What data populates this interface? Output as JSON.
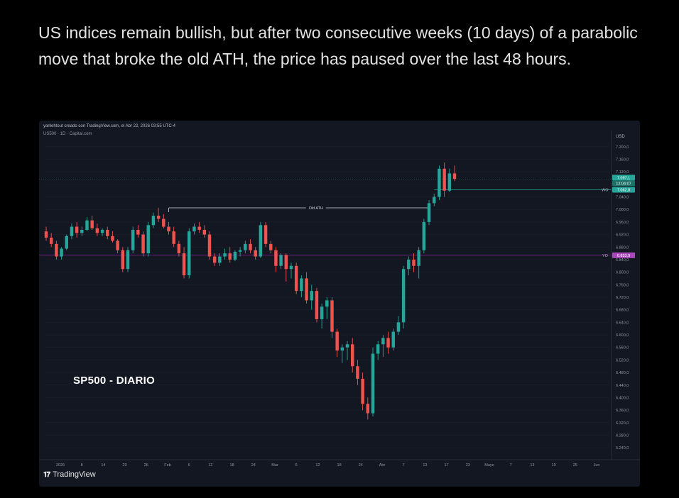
{
  "post": {
    "text": "US indices remain bullish, but after two consecutive weeks (10 days) of a parabolic move that broke the old ATH, the price has paused over the last 48 hours."
  },
  "chart": {
    "credit": "yanlehtout creado con TradingView.com, el Abr 22, 2026 03:55 UTC-4",
    "symbol": "US500 · 1D · Capital.com",
    "currency": "USD",
    "caption": "SP500 - DIARIO",
    "brand": "TradingView",
    "brand_icon": "tradingview-logo-icon",
    "colors": {
      "up": "#26a69a",
      "down": "#ef5350",
      "background": "#131722",
      "ath_line": "#d1d4dc",
      "yo_line": "#9c27b0",
      "wo_line": "#26a69a"
    }
  },
  "chart_data": {
    "type": "candlestick",
    "title": "SP500 - DIARIO",
    "ylim": [
      6220,
      7220
    ],
    "y_ticks": [
      "7.200,0",
      "7.160,0",
      "7.120,0",
      "7.080,0",
      "7.040,0",
      "7.000,0",
      "6.960,0",
      "6.920,0",
      "6.880,0",
      "6.840,0",
      "6.800,0",
      "6.760,0",
      "6.720,0",
      "6.680,0",
      "6.640,0",
      "6.600,0",
      "6.560,0",
      "6.520,0",
      "6.480,0",
      "6.440,0",
      "6.400,0",
      "6.360,0",
      "6.320,0",
      "6.280,0",
      "6.240,0"
    ],
    "x_ticks": [
      "2026",
      "8",
      "14",
      "20",
      "26",
      "Feb",
      "6",
      "12",
      "18",
      "24",
      "Mar",
      "6",
      "12",
      "18",
      "24",
      "Abr",
      "7",
      "13",
      "17",
      "23",
      "Mayo",
      "7",
      "13",
      "19",
      "25",
      "Jun"
    ],
    "price_labels": {
      "last": "7.097,1",
      "countdown": "12:04:07",
      "wo": "7.062,8",
      "yo": "6.853,9",
      "wo_tag": "WO",
      "yo_tag": "YO"
    },
    "levels": {
      "ath_label": "Old ATH",
      "ath": 7005,
      "wo": 7062.8,
      "yo": 6853.9
    },
    "candles": [
      [
        6930,
        6945,
        6900,
        6910
      ],
      [
        6910,
        6925,
        6880,
        6890
      ],
      [
        6890,
        6900,
        6840,
        6850
      ],
      [
        6850,
        6880,
        6840,
        6875
      ],
      [
        6875,
        6920,
        6870,
        6915
      ],
      [
        6915,
        6955,
        6905,
        6945
      ],
      [
        6945,
        6960,
        6910,
        6925
      ],
      [
        6925,
        6945,
        6915,
        6935
      ],
      [
        6935,
        6975,
        6930,
        6965
      ],
      [
        6965,
        6980,
        6935,
        6940
      ],
      [
        6940,
        6955,
        6915,
        6925
      ],
      [
        6925,
        6940,
        6915,
        6935
      ],
      [
        6935,
        6945,
        6905,
        6915
      ],
      [
        6915,
        6930,
        6895,
        6900
      ],
      [
        6900,
        6905,
        6860,
        6870
      ],
      [
        6870,
        6880,
        6800,
        6810
      ],
      [
        6810,
        6880,
        6800,
        6870
      ],
      [
        6870,
        6945,
        6860,
        6935
      ],
      [
        6935,
        6950,
        6910,
        6920
      ],
      [
        6920,
        6930,
        6850,
        6860
      ],
      [
        6860,
        6960,
        6850,
        6950
      ],
      [
        6950,
        6990,
        6940,
        6980
      ],
      [
        6980,
        7005,
        6960,
        6970
      ],
      [
        6970,
        6985,
        6940,
        6945
      ],
      [
        6945,
        6960,
        6920,
        6930
      ],
      [
        6930,
        6945,
        6880,
        6890
      ],
      [
        6890,
        6900,
        6850,
        6860
      ],
      [
        6860,
        6880,
        6780,
        6790
      ],
      [
        6790,
        6940,
        6780,
        6930
      ],
      [
        6930,
        6955,
        6920,
        6945
      ],
      [
        6945,
        6960,
        6925,
        6935
      ],
      [
        6935,
        6950,
        6910,
        6920
      ],
      [
        6920,
        6930,
        6840,
        6850
      ],
      [
        6850,
        6860,
        6820,
        6830
      ],
      [
        6830,
        6860,
        6820,
        6850
      ],
      [
        6850,
        6875,
        6840,
        6860
      ],
      [
        6860,
        6880,
        6830,
        6840
      ],
      [
        6840,
        6870,
        6835,
        6865
      ],
      [
        6865,
        6880,
        6850,
        6870
      ],
      [
        6870,
        6900,
        6860,
        6890
      ],
      [
        6890,
        6905,
        6860,
        6870
      ],
      [
        6870,
        6880,
        6840,
        6850
      ],
      [
        6850,
        6960,
        6845,
        6950
      ],
      [
        6950,
        6960,
        6880,
        6890
      ],
      [
        6890,
        6900,
        6860,
        6870
      ],
      [
        6870,
        6880,
        6800,
        6820
      ],
      [
        6820,
        6860,
        6810,
        6855
      ],
      [
        6855,
        6860,
        6770,
        6810
      ],
      [
        6810,
        6830,
        6780,
        6820
      ],
      [
        6820,
        6830,
        6730,
        6740
      ],
      [
        6740,
        6790,
        6720,
        6780
      ],
      [
        6780,
        6800,
        6700,
        6710
      ],
      [
        6710,
        6760,
        6680,
        6740
      ],
      [
        6740,
        6750,
        6640,
        6650
      ],
      [
        6650,
        6700,
        6620,
        6690
      ],
      [
        6690,
        6720,
        6650,
        6710
      ],
      [
        6710,
        6720,
        6590,
        6610
      ],
      [
        6610,
        6620,
        6530,
        6550
      ],
      [
        6550,
        6570,
        6510,
        6560
      ],
      [
        6560,
        6580,
        6520,
        6570
      ],
      [
        6570,
        6590,
        6480,
        6500
      ],
      [
        6500,
        6520,
        6440,
        6460
      ],
      [
        6460,
        6480,
        6360,
        6380
      ],
      [
        6380,
        6400,
        6330,
        6350
      ],
      [
        6350,
        6560,
        6340,
        6540
      ],
      [
        6540,
        6580,
        6520,
        6570
      ],
      [
        6570,
        6600,
        6530,
        6590
      ],
      [
        6590,
        6610,
        6540,
        6560
      ],
      [
        6560,
        6620,
        6550,
        6610
      ],
      [
        6610,
        6660,
        6600,
        6640
      ],
      [
        6640,
        6820,
        6620,
        6810
      ],
      [
        6810,
        6850,
        6790,
        6840
      ],
      [
        6840,
        6860,
        6800,
        6820
      ],
      [
        6820,
        6880,
        6780,
        6870
      ],
      [
        6870,
        6970,
        6860,
        6960
      ],
      [
        6960,
        7030,
        6950,
        7020
      ],
      [
        7020,
        7050,
        7010,
        7040
      ],
      [
        7040,
        7140,
        7030,
        7130
      ],
      [
        7130,
        7150,
        7040,
        7060
      ],
      [
        7060,
        7130,
        7055,
        7115
      ],
      [
        7115,
        7140,
        7090,
        7097
      ]
    ]
  }
}
